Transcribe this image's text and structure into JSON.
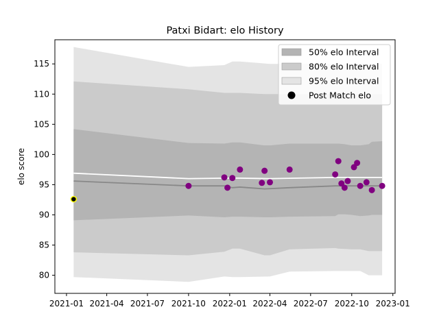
{
  "chart_data": {
    "type": "scatter",
    "title": "Patxi Bidart: elo History",
    "xlabel": "",
    "ylabel": "elo score",
    "xlim": [
      "2020-12-06",
      "2023-01-06"
    ],
    "ylim": [
      77,
      119
    ],
    "x_ticks": [
      "2021-01",
      "2021-04",
      "2021-07",
      "2021-10",
      "2022-01",
      "2022-04",
      "2022-07",
      "2022-10",
      "2023-01"
    ],
    "y_ticks": [
      80,
      85,
      90,
      95,
      100,
      105,
      110,
      115
    ],
    "legend": {
      "position": "upper right",
      "entries": [
        "50% elo Interval",
        "80% elo Interval",
        "95% elo Interval",
        "Post Match elo"
      ]
    },
    "bands": [
      {
        "name": "95% elo Interval",
        "color": "#e4e4e4",
        "x": [
          "2021-01-17",
          "2021-10-01",
          "2021-12-20",
          "2022-01-07",
          "2022-01-24",
          "2022-04-01",
          "2022-05-15",
          "2022-08-25",
          "2022-09-01",
          "2022-10-01",
          "2022-10-20",
          "2022-11-08",
          "2022-12-08"
        ],
        "upper": [
          117.8,
          114.5,
          114.8,
          115.4,
          115.4,
          115.0,
          115.0,
          115.0,
          115.0,
          115.0,
          115.0,
          115.0,
          115.0
        ],
        "lower": [
          79.7,
          78.9,
          79.8,
          79.7,
          79.7,
          79.8,
          80.6,
          80.7,
          80.7,
          80.7,
          80.7,
          80.0,
          80.0
        ]
      },
      {
        "name": "80% elo Interval",
        "color": "#cbcbcb",
        "x": [
          "2021-01-17",
          "2021-10-01",
          "2021-12-20",
          "2022-01-07",
          "2022-01-24",
          "2022-03-20",
          "2022-04-01",
          "2022-05-15",
          "2022-08-25",
          "2022-09-01",
          "2022-10-01",
          "2022-10-20",
          "2022-11-08",
          "2022-12-08"
        ],
        "upper": [
          112.1,
          110.8,
          110.2,
          110.2,
          110.2,
          110.0,
          110.0,
          110.0,
          110.0,
          110.0,
          110.0,
          110.0,
          110.0,
          110.0
        ],
        "lower": [
          83.8,
          83.3,
          83.9,
          84.4,
          84.4,
          83.3,
          83.3,
          84.3,
          84.5,
          84.4,
          84.3,
          84.3,
          84.0,
          84.0
        ]
      },
      {
        "name": "50% elo Interval",
        "color": "#b4b4b4",
        "x": [
          "2021-01-17",
          "2021-10-01",
          "2021-12-20",
          "2022-01-07",
          "2022-01-24",
          "2022-03-20",
          "2022-04-01",
          "2022-05-15",
          "2022-08-25",
          "2022-09-01",
          "2022-09-15",
          "2022-10-01",
          "2022-10-20",
          "2022-11-08",
          "2022-11-15",
          "2022-12-08"
        ],
        "upper": [
          104.2,
          101.9,
          101.8,
          102.0,
          102.0,
          101.5,
          101.5,
          101.8,
          101.8,
          101.8,
          101.7,
          101.5,
          101.5,
          101.7,
          102.1,
          102.2
        ],
        "lower": [
          89.1,
          89.9,
          89.6,
          89.7,
          89.7,
          89.6,
          89.6,
          89.7,
          89.8,
          90.1,
          90.1,
          90.0,
          89.8,
          89.9,
          90.0,
          90.0
        ]
      }
    ],
    "lines": [
      {
        "name": "mean",
        "color": "#ffffff",
        "x": [
          "2021-01-17",
          "2021-10-01",
          "2022-01-07",
          "2022-04-01",
          "2022-08-25",
          "2022-12-08"
        ],
        "y": [
          96.9,
          96.0,
          96.1,
          96.0,
          96.2,
          96.2
        ]
      },
      {
        "name": "median",
        "color": "#888888",
        "x": [
          "2021-01-17",
          "2021-10-01",
          "2021-12-20",
          "2022-01-07",
          "2022-01-24",
          "2022-03-20",
          "2022-05-15",
          "2022-08-25",
          "2022-12-08"
        ],
        "y": [
          95.6,
          94.8,
          94.8,
          94.5,
          94.6,
          94.3,
          94.5,
          94.8,
          94.8
        ]
      }
    ],
    "first_point": {
      "x": "2021-01-17",
      "y": 92.6,
      "color": "#000000",
      "edge": "#ffff00"
    },
    "points": {
      "name": "Post Match elo",
      "color": "#800080",
      "x": [
        "2021-10-01",
        "2021-12-20",
        "2021-12-27",
        "2022-01-07",
        "2022-01-24",
        "2022-03-14",
        "2022-03-20",
        "2022-04-01",
        "2022-05-15",
        "2022-08-25",
        "2022-09-01",
        "2022-09-08",
        "2022-09-15",
        "2022-09-22",
        "2022-10-06",
        "2022-10-13",
        "2022-10-20",
        "2022-11-03",
        "2022-11-15",
        "2022-12-08"
      ],
      "y": [
        94.8,
        96.2,
        94.5,
        96.1,
        97.5,
        95.3,
        97.3,
        95.4,
        97.5,
        96.7,
        98.9,
        95.2,
        94.5,
        95.6,
        97.9,
        98.6,
        94.8,
        95.4,
        94.1,
        94.8
      ]
    }
  }
}
